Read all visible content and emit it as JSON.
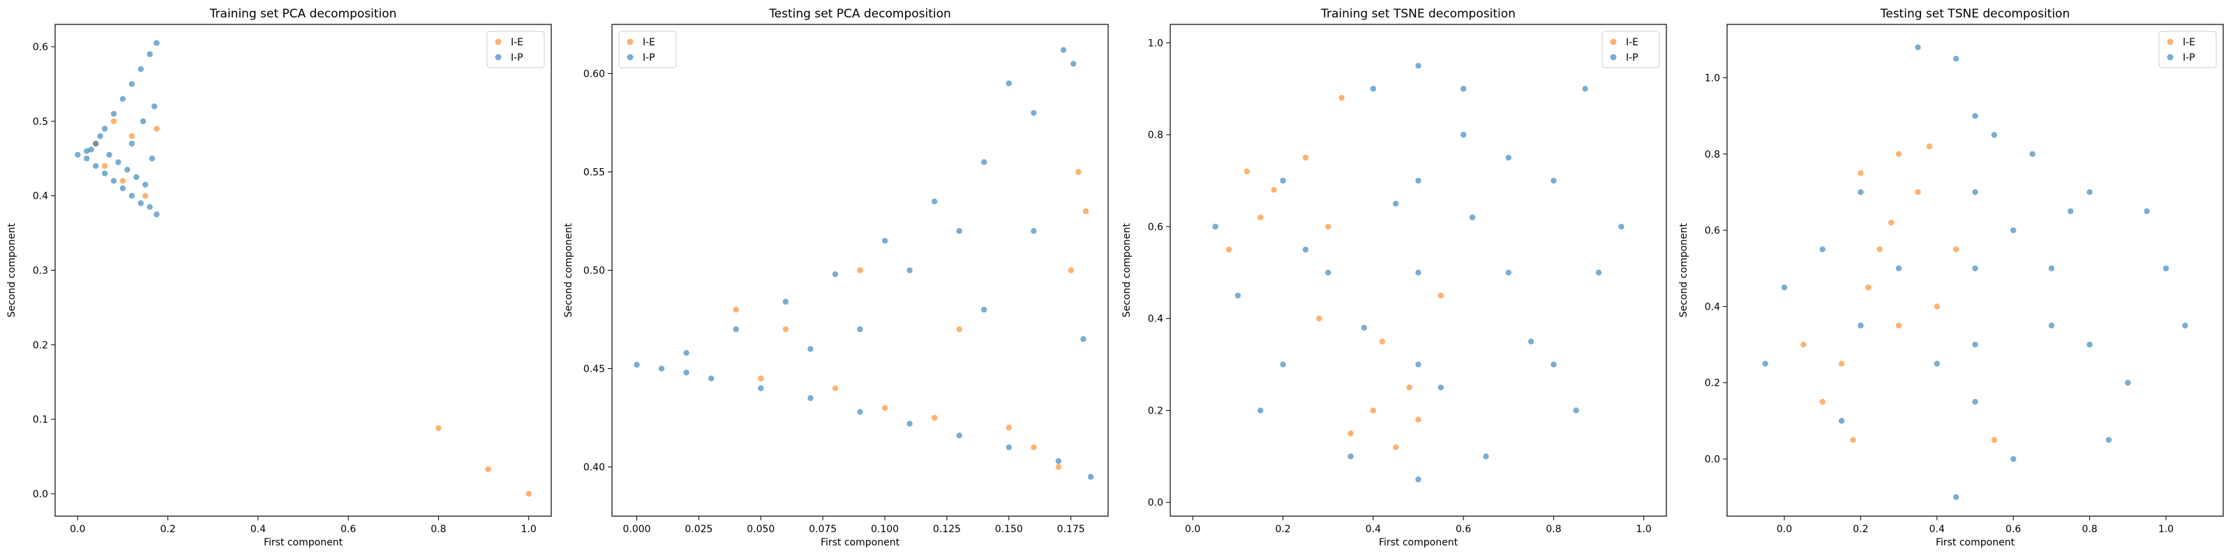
{
  "colors": {
    "ie": "#ff7f0e",
    "ip": "#1f77b4"
  },
  "chart_data": [
    {
      "type": "scatter",
      "title": "Training set PCA decomposition",
      "xlabel": "First component",
      "ylabel": "Second component",
      "xlim": [
        -0.05,
        1.05
      ],
      "ylim": [
        -0.03,
        0.63
      ],
      "xticks": [
        0.0,
        0.2,
        0.4,
        0.6,
        0.8,
        1.0
      ],
      "xtick_labels": [
        "0.0",
        "0.2",
        "0.4",
        "0.6",
        "0.8",
        "1.0"
      ],
      "yticks": [
        0.0,
        0.1,
        0.2,
        0.3,
        0.4,
        0.5,
        0.6
      ],
      "ytick_labels": [
        "0.0",
        "0.1",
        "0.2",
        "0.3",
        "0.4",
        "0.5",
        "0.6"
      ],
      "legend": {
        "placement": "top-right",
        "entries": [
          "I-E",
          "I-P"
        ]
      },
      "series": [
        {
          "name": "I-E",
          "color": "#ff7f0e",
          "points": [
            [
              0.8,
              0.088
            ],
            [
              0.91,
              0.033
            ],
            [
              1.0,
              0.0
            ],
            [
              0.175,
              0.49
            ],
            [
              0.04,
              0.47
            ],
            [
              0.06,
              0.44
            ],
            [
              0.1,
              0.42
            ],
            [
              0.12,
              0.48
            ],
            [
              0.08,
              0.5
            ],
            [
              0.15,
              0.4
            ]
          ]
        },
        {
          "name": "I-P",
          "color": "#1f77b4",
          "points": [
            [
              0.0,
              0.455
            ],
            [
              0.02,
              0.46
            ],
            [
              0.04,
              0.47
            ],
            [
              0.06,
              0.49
            ],
            [
              0.08,
              0.51
            ],
            [
              0.1,
              0.53
            ],
            [
              0.12,
              0.55
            ],
            [
              0.14,
              0.57
            ],
            [
              0.16,
              0.59
            ],
            [
              0.175,
              0.605
            ],
            [
              0.02,
              0.45
            ],
            [
              0.04,
              0.44
            ],
            [
              0.06,
              0.43
            ],
            [
              0.08,
              0.42
            ],
            [
              0.1,
              0.41
            ],
            [
              0.12,
              0.4
            ],
            [
              0.14,
              0.39
            ],
            [
              0.16,
              0.385
            ],
            [
              0.175,
              0.375
            ],
            [
              0.05,
              0.48
            ],
            [
              0.07,
              0.455
            ],
            [
              0.09,
              0.445
            ],
            [
              0.11,
              0.435
            ],
            [
              0.13,
              0.425
            ],
            [
              0.15,
              0.415
            ],
            [
              0.165,
              0.45
            ],
            [
              0.17,
              0.52
            ],
            [
              0.145,
              0.5
            ],
            [
              0.12,
              0.47
            ],
            [
              0.03,
              0.462
            ]
          ]
        }
      ]
    },
    {
      "type": "scatter",
      "title": "Testing set PCA decomposition",
      "xlabel": "First component",
      "ylabel": "Second component",
      "xlim": [
        -0.01,
        0.19
      ],
      "ylim": [
        0.375,
        0.625
      ],
      "xticks": [
        0.0,
        0.025,
        0.05,
        0.075,
        0.1,
        0.125,
        0.15,
        0.175
      ],
      "xtick_labels": [
        "0.000",
        "0.025",
        "0.050",
        "0.075",
        "0.100",
        "0.125",
        "0.150",
        "0.175"
      ],
      "yticks": [
        0.4,
        0.45,
        0.5,
        0.55,
        0.6
      ],
      "ytick_labels": [
        "0.40",
        "0.45",
        "0.50",
        "0.55",
        "0.60"
      ],
      "legend": {
        "placement": "top-left",
        "entries": [
          "I-E",
          "I-P"
        ]
      },
      "series": [
        {
          "name": "I-E",
          "color": "#ff7f0e",
          "points": [
            [
              0.178,
              0.55
            ],
            [
              0.181,
              0.53
            ],
            [
              0.175,
              0.5
            ],
            [
              0.15,
              0.42
            ],
            [
              0.12,
              0.425
            ],
            [
              0.1,
              0.43
            ],
            [
              0.08,
              0.44
            ],
            [
              0.06,
              0.47
            ],
            [
              0.04,
              0.48
            ],
            [
              0.16,
              0.41
            ],
            [
              0.17,
              0.4
            ],
            [
              0.13,
              0.47
            ],
            [
              0.09,
              0.5
            ],
            [
              0.05,
              0.445
            ]
          ]
        },
        {
          "name": "I-P",
          "color": "#1f77b4",
          "points": [
            [
              0.0,
              0.452
            ],
            [
              0.01,
              0.45
            ],
            [
              0.02,
              0.448
            ],
            [
              0.03,
              0.445
            ],
            [
              0.05,
              0.44
            ],
            [
              0.07,
              0.435
            ],
            [
              0.09,
              0.428
            ],
            [
              0.11,
              0.422
            ],
            [
              0.13,
              0.416
            ],
            [
              0.15,
              0.41
            ],
            [
              0.17,
              0.403
            ],
            [
              0.183,
              0.395
            ],
            [
              0.02,
              0.458
            ],
            [
              0.04,
              0.47
            ],
            [
              0.06,
              0.484
            ],
            [
              0.08,
              0.498
            ],
            [
              0.1,
              0.515
            ],
            [
              0.12,
              0.535
            ],
            [
              0.14,
              0.555
            ],
            [
              0.16,
              0.58
            ],
            [
              0.172,
              0.612
            ],
            [
              0.176,
              0.605
            ],
            [
              0.15,
              0.595
            ],
            [
              0.16,
              0.52
            ],
            [
              0.14,
              0.48
            ],
            [
              0.18,
              0.465
            ],
            [
              0.13,
              0.52
            ],
            [
              0.11,
              0.5
            ],
            [
              0.09,
              0.47
            ],
            [
              0.07,
              0.46
            ]
          ]
        }
      ]
    },
    {
      "type": "scatter",
      "title": "Training set TSNE decomposition",
      "xlabel": "First component",
      "ylabel": "Second component",
      "xlim": [
        -0.05,
        1.05
      ],
      "ylim": [
        -0.03,
        1.04
      ],
      "xticks": [
        0.0,
        0.2,
        0.4,
        0.6,
        0.8,
        1.0
      ],
      "xtick_labels": [
        "0.0",
        "0.2",
        "0.4",
        "0.6",
        "0.8",
        "1.0"
      ],
      "yticks": [
        0.0,
        0.2,
        0.4,
        0.6,
        0.8,
        1.0
      ],
      "ytick_labels": [
        "0.0",
        "0.2",
        "0.4",
        "0.6",
        "0.8",
        "1.0"
      ],
      "legend": {
        "placement": "top-right",
        "entries": [
          "I-E",
          "I-P"
        ]
      },
      "series": [
        {
          "name": "I-E",
          "color": "#ff7f0e",
          "points": [
            [
              0.12,
              0.72
            ],
            [
              0.18,
              0.68
            ],
            [
              0.25,
              0.75
            ],
            [
              0.08,
              0.55
            ],
            [
              0.3,
              0.6
            ],
            [
              0.35,
              0.15
            ],
            [
              0.45,
              0.12
            ],
            [
              0.4,
              0.2
            ],
            [
              0.5,
              0.18
            ],
            [
              0.42,
              0.35
            ],
            [
              0.55,
              0.45
            ],
            [
              0.28,
              0.4
            ],
            [
              0.15,
              0.62
            ],
            [
              0.33,
              0.88
            ],
            [
              0.48,
              0.25
            ]
          ]
        },
        {
          "name": "I-P",
          "color": "#1f77b4",
          "points": [
            [
              0.5,
              0.5
            ],
            [
              0.3,
              0.5
            ],
            [
              0.7,
              0.5
            ],
            [
              0.5,
              0.3
            ],
            [
              0.5,
              0.7
            ],
            [
              0.2,
              0.3
            ],
            [
              0.8,
              0.3
            ],
            [
              0.2,
              0.7
            ],
            [
              0.8,
              0.7
            ],
            [
              0.1,
              0.45
            ],
            [
              0.9,
              0.5
            ],
            [
              0.5,
              0.05
            ],
            [
              0.5,
              0.95
            ],
            [
              0.35,
              0.1
            ],
            [
              0.65,
              0.1
            ],
            [
              0.4,
              0.9
            ],
            [
              0.6,
              0.9
            ],
            [
              0.05,
              0.6
            ],
            [
              0.95,
              0.6
            ],
            [
              0.15,
              0.2
            ],
            [
              0.85,
              0.2
            ],
            [
              0.87,
              0.9
            ],
            [
              0.6,
              0.8
            ],
            [
              0.7,
              0.75
            ],
            [
              0.25,
              0.55
            ],
            [
              0.75,
              0.35
            ],
            [
              0.45,
              0.65
            ],
            [
              0.55,
              0.25
            ],
            [
              0.62,
              0.62
            ],
            [
              0.38,
              0.38
            ]
          ]
        }
      ]
    },
    {
      "type": "scatter",
      "title": "Testing set TSNE decomposition",
      "xlabel": "First component",
      "ylabel": "Second component",
      "xlim": [
        -0.15,
        1.15
      ],
      "ylim": [
        -0.15,
        1.14
      ],
      "xticks": [
        0.0,
        0.2,
        0.4,
        0.6,
        0.8,
        1.0
      ],
      "xtick_labels": [
        "0.0",
        "0.2",
        "0.4",
        "0.6",
        "0.8",
        "1.0"
      ],
      "yticks": [
        0.0,
        0.2,
        0.4,
        0.6,
        0.8,
        1.0
      ],
      "ytick_labels": [
        "0.0",
        "0.2",
        "0.4",
        "0.6",
        "0.8",
        "1.0"
      ],
      "legend": {
        "placement": "top-right",
        "entries": [
          "I-E",
          "I-P"
        ]
      },
      "series": [
        {
          "name": "I-E",
          "color": "#ff7f0e",
          "points": [
            [
              0.2,
              0.75
            ],
            [
              0.3,
              0.8
            ],
            [
              0.35,
              0.7
            ],
            [
              0.25,
              0.55
            ],
            [
              0.15,
              0.25
            ],
            [
              0.1,
              0.15
            ],
            [
              0.05,
              0.3
            ],
            [
              0.18,
              0.05
            ],
            [
              0.3,
              0.35
            ],
            [
              0.4,
              0.4
            ],
            [
              0.55,
              0.05
            ],
            [
              0.45,
              0.55
            ],
            [
              0.28,
              0.62
            ],
            [
              0.22,
              0.45
            ],
            [
              0.38,
              0.82
            ]
          ]
        },
        {
          "name": "I-P",
          "color": "#1f77b4",
          "points": [
            [
              0.5,
              0.5
            ],
            [
              0.3,
              0.5
            ],
            [
              0.7,
              0.5
            ],
            [
              0.5,
              0.3
            ],
            [
              0.5,
              0.7
            ],
            [
              0.2,
              0.35
            ],
            [
              0.8,
              0.3
            ],
            [
              0.2,
              0.7
            ],
            [
              0.8,
              0.7
            ],
            [
              0.0,
              0.45
            ],
            [
              1.0,
              0.5
            ],
            [
              0.5,
              0.15
            ],
            [
              0.5,
              0.9
            ],
            [
              0.35,
              1.08
            ],
            [
              0.45,
              1.05
            ],
            [
              0.65,
              0.8
            ],
            [
              0.75,
              0.65
            ],
            [
              0.9,
              0.2
            ],
            [
              0.85,
              0.05
            ],
            [
              1.05,
              0.35
            ],
            [
              0.6,
              0.0
            ],
            [
              0.45,
              -0.1
            ],
            [
              0.15,
              0.1
            ],
            [
              -0.05,
              0.25
            ],
            [
              0.6,
              0.6
            ],
            [
              0.4,
              0.25
            ],
            [
              0.7,
              0.35
            ],
            [
              0.1,
              0.55
            ],
            [
              0.95,
              0.65
            ],
            [
              0.55,
              0.85
            ]
          ]
        }
      ]
    }
  ]
}
